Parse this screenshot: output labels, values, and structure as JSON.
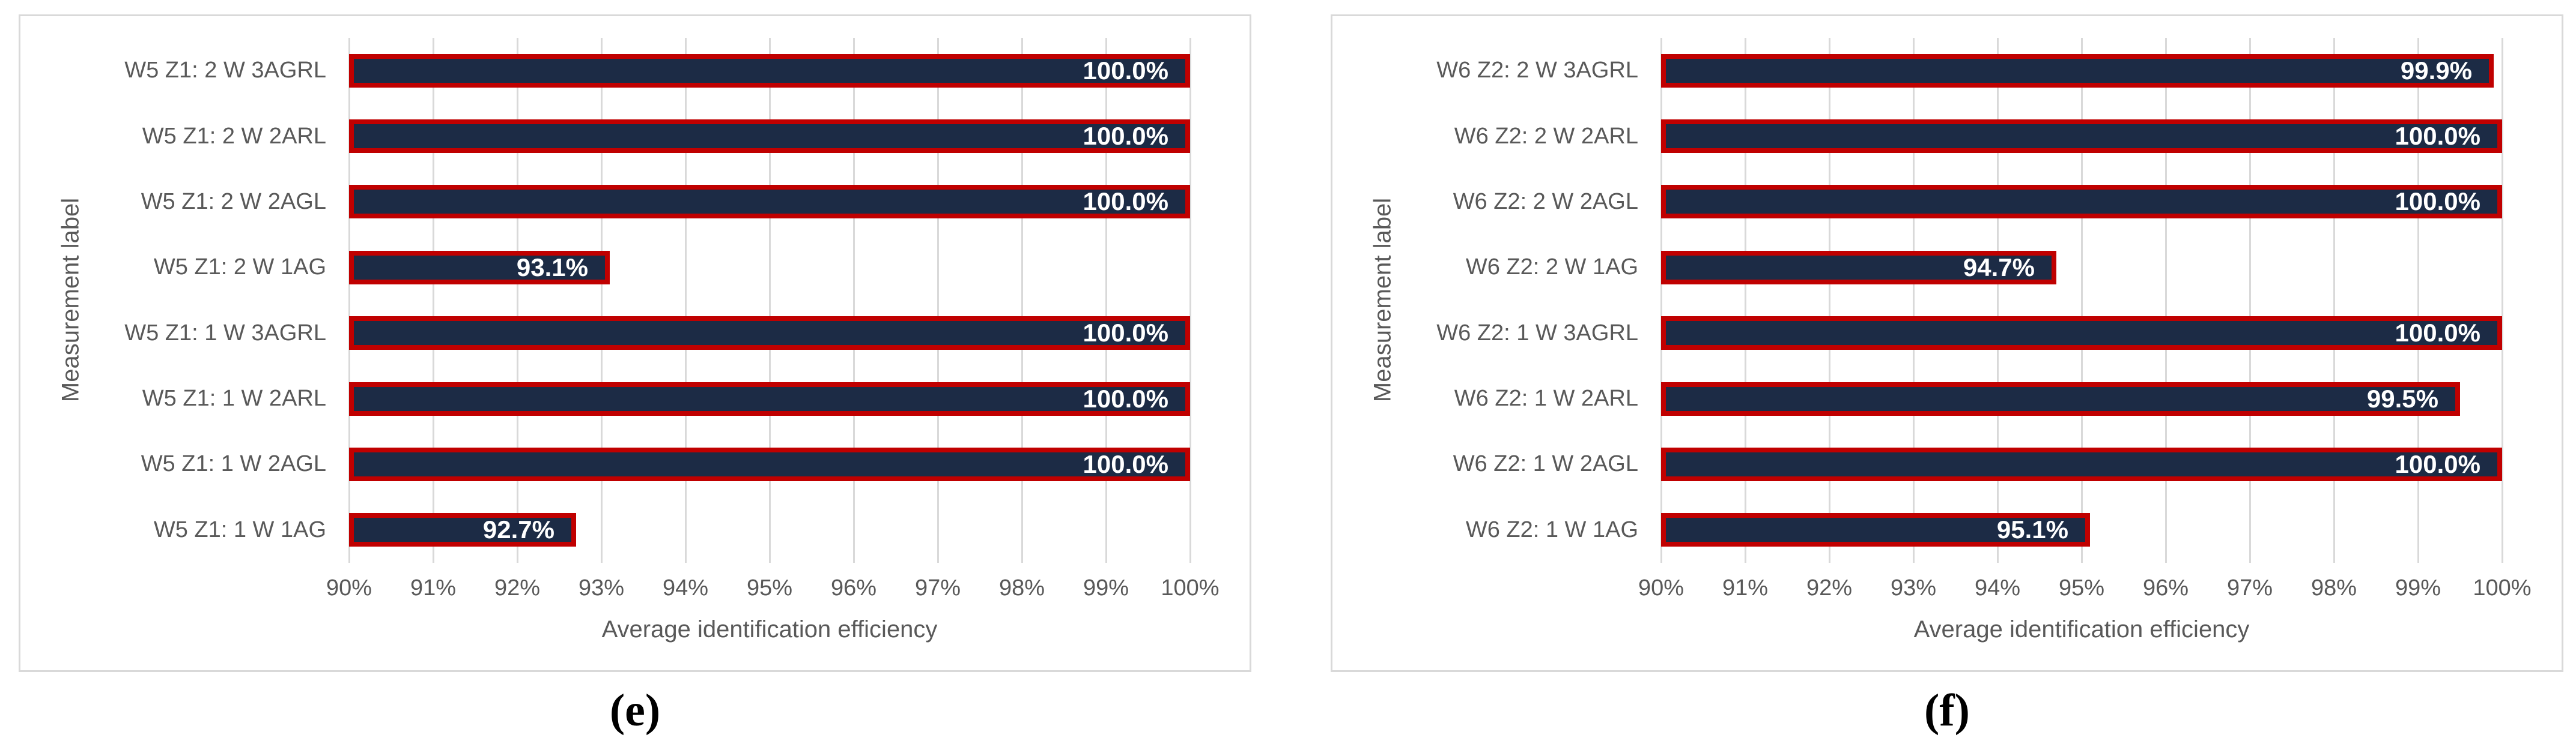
{
  "colors": {
    "bar_fill": "#1c2b45",
    "bar_border": "#c00000",
    "grid": "#d9d9d9",
    "panel_border": "#d9d9d9",
    "axis_text": "#595959",
    "value_text": "#ffffff",
    "caption_text": "#000000"
  },
  "chart_data": [
    {
      "type": "bar",
      "orientation": "horizontal",
      "caption": "(e)",
      "xlabel": "Average identification efficiency",
      "ylabel": "Measurement label",
      "xlim": [
        90,
        100
      ],
      "grid": true,
      "legend": false,
      "x_tick_labels": [
        "90%",
        "91%",
        "92%",
        "93%",
        "94%",
        "95%",
        "96%",
        "97%",
        "98%",
        "99%",
        "100%"
      ],
      "categories": [
        "W5 Z1: 2 W 3AGRL",
        "W5 Z1: 2 W 2ARL",
        "W5 Z1: 2 W 2AGL",
        "W5 Z1: 2 W 1AG",
        "W5 Z1: 1 W 3AGRL",
        "W5 Z1: 1 W 2ARL",
        "W5 Z1: 1 W 2AGL",
        "W5 Z1: 1 W 1AG"
      ],
      "values": [
        100.0,
        100.0,
        100.0,
        93.1,
        100.0,
        100.0,
        100.0,
        92.7
      ],
      "value_labels": [
        "100.0%",
        "100.0%",
        "100.0%",
        "93.1%",
        "100.0%",
        "100.0%",
        "100.0%",
        "92.7%"
      ]
    },
    {
      "type": "bar",
      "orientation": "horizontal",
      "caption": "(f)",
      "xlabel": "Average identification efficiency",
      "ylabel": "Measurement label",
      "xlim": [
        90,
        100
      ],
      "grid": true,
      "legend": false,
      "x_tick_labels": [
        "90%",
        "91%",
        "92%",
        "93%",
        "94%",
        "95%",
        "96%",
        "97%",
        "98%",
        "99%",
        "100%"
      ],
      "categories": [
        "W6 Z2: 2 W 3AGRL",
        "W6 Z2: 2 W 2ARL",
        "W6 Z2: 2 W 2AGL",
        "W6 Z2: 2 W 1AG",
        "W6 Z2: 1 W 3AGRL",
        "W6 Z2: 1 W 2ARL",
        "W6 Z2: 1 W 2AGL",
        "W6 Z2: 1 W 1AG"
      ],
      "values": [
        99.9,
        100.0,
        100.0,
        94.7,
        100.0,
        99.5,
        100.0,
        95.1
      ],
      "value_labels": [
        "99.9%",
        "100.0%",
        "100.0%",
        "94.7%",
        "100.0%",
        "99.5%",
        "100.0%",
        "95.1%"
      ]
    }
  ]
}
